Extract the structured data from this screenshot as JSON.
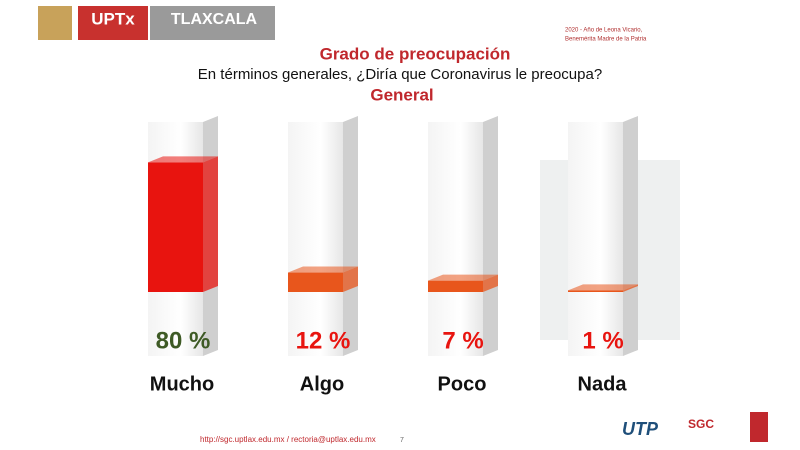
{
  "header": {
    "logo_left": "UPTx",
    "logo_right": "TLAXCALA",
    "motto_1": "2020 - Año de Leona Vicario,",
    "motto_2": "Benemérita Madre de la Patria"
  },
  "chart_data": {
    "type": "bar",
    "title": "Grado de preocupación",
    "subtitle": "En términos generales, ¿Diría que Coronavirus le preocupa?",
    "subtitle_2": "General",
    "categories": [
      "Mucho",
      "Algo",
      "Poco",
      "Nada"
    ],
    "values": [
      80,
      12,
      7,
      1
    ],
    "value_labels": [
      "80 %",
      "12 %",
      "7 %",
      "1 %"
    ],
    "colors": [
      "#e8140f",
      "#e8561c",
      "#e8561c",
      "#e8561c"
    ],
    "label_colors": [
      "#3e5a25",
      "#e8140f",
      "#e8140f",
      "#e8140f"
    ],
    "ylim": [
      0,
      100
    ]
  },
  "footer": {
    "links": "http://sgc.uptlax.edu.mx / rectoria@uptlax.edu.mx",
    "page": "7",
    "logo_1": "UTP",
    "logo_2": "SGC"
  }
}
